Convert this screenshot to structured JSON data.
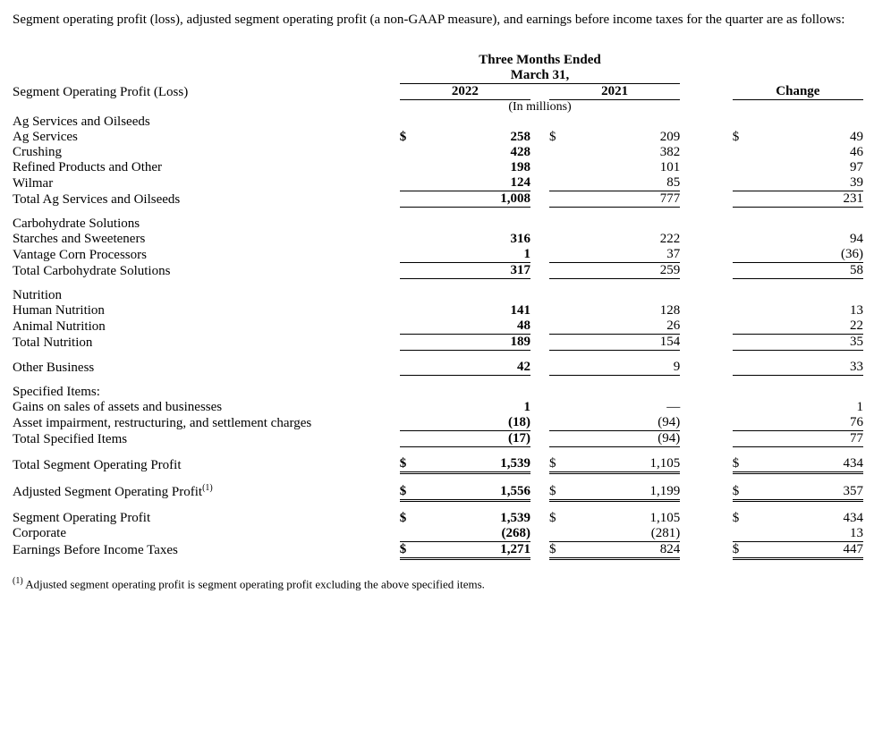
{
  "intro": "Segment operating profit (loss), adjusted segment operating profit (a non-GAAP measure), and earnings before income taxes for the quarter are as follows:",
  "header": {
    "period_label": "Three Months Ended",
    "period_sub": "March 31,",
    "year_current": "2022",
    "year_prior": "2021",
    "change_label": "Change",
    "units": "(In millions)"
  },
  "table_title": "Segment Operating Profit (Loss)",
  "groups": {
    "ag": {
      "title": "Ag Services and Oilseeds",
      "rows": [
        {
          "label": "Ag Services",
          "v2022": "258",
          "sym2022": "$",
          "v2021": "209",
          "sym2021": "$",
          "chg": "49",
          "symchg": "$"
        },
        {
          "label": "Crushing",
          "v2022": "428",
          "v2021": "382",
          "chg": "46"
        },
        {
          "label": "Refined Products and Other",
          "v2022": "198",
          "v2021": "101",
          "chg": "97"
        },
        {
          "label": "Wilmar",
          "v2022": "124",
          "v2021": "85",
          "chg": "39"
        }
      ],
      "total": {
        "label": "Total Ag Services and Oilseeds",
        "v2022": "1,008",
        "v2021": "777",
        "chg": "231"
      }
    },
    "carb": {
      "title": "Carbohydrate Solutions",
      "rows": [
        {
          "label": "Starches and Sweeteners",
          "v2022": "316",
          "v2021": "222",
          "chg": "94"
        },
        {
          "label": "Vantage Corn Processors",
          "v2022": "1",
          "v2021": "37",
          "chg": "(36)"
        }
      ],
      "total": {
        "label": "Total Carbohydrate Solutions",
        "v2022": "317",
        "v2021": "259",
        "chg": "58"
      }
    },
    "nut": {
      "title": "Nutrition",
      "rows": [
        {
          "label": "Human Nutrition",
          "v2022": "141",
          "v2021": "128",
          "chg": "13"
        },
        {
          "label": "Animal Nutrition",
          "v2022": "48",
          "v2021": "26",
          "chg": "22"
        }
      ],
      "total": {
        "label": "Total Nutrition",
        "v2022": "189",
        "v2021": "154",
        "chg": "35"
      }
    },
    "other": {
      "label": "Other Business",
      "v2022": "42",
      "v2021": "9",
      "chg": "33"
    },
    "spec": {
      "title": "Specified Items:",
      "rows": [
        {
          "label": "Gains on sales of assets and businesses",
          "v2022": "1",
          "v2021": "—",
          "chg": "1"
        },
        {
          "label": "Asset impairment, restructuring, and settlement charges",
          "v2022": "(18)",
          "v2021": "(94)",
          "chg": "76"
        }
      ],
      "total": {
        "label": "Total Specified Items",
        "v2022": "(17)",
        "v2021": "(94)",
        "chg": "77"
      }
    }
  },
  "summary": {
    "tsop": {
      "label": "Total Segment Operating Profit",
      "sym": "$",
      "v2022": "1,539",
      "v2021": "1,105",
      "chg": "434"
    },
    "asop": {
      "label": "Adjusted Segment Operating Profit",
      "sup": "(1)",
      "sym": "$",
      "v2022": "1,556",
      "v2021": "1,199",
      "chg": "357"
    },
    "sop": {
      "label": "Segment Operating Profit",
      "sym": "$",
      "v2022": "1,539",
      "v2021": "1,105",
      "chg": "434"
    },
    "corp": {
      "label": "Corporate",
      "v2022": "(268)",
      "v2021": "(281)",
      "chg": "13"
    },
    "ebit": {
      "label": "Earnings Before Income Taxes",
      "sym": "$",
      "v2022": "1,271",
      "v2021": "824",
      "chg": "447"
    }
  },
  "footnote": {
    "marker": "(1)",
    "text": " Adjusted segment operating profit is segment operating profit excluding the above specified items."
  }
}
